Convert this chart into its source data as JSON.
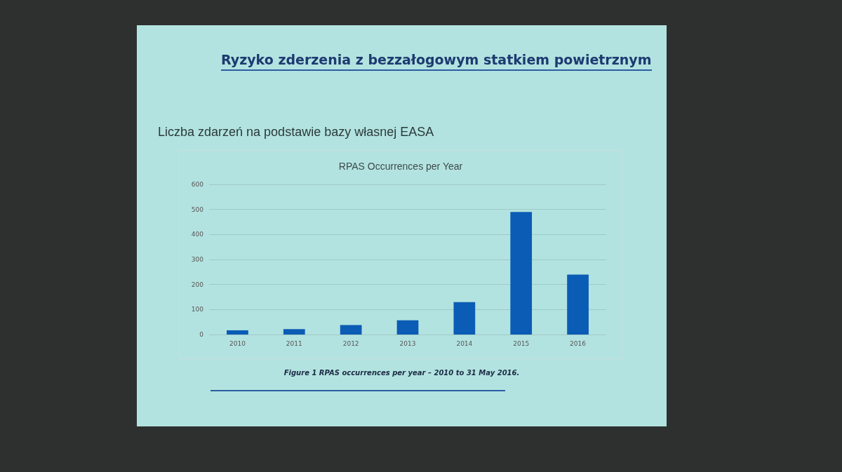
{
  "chart_data": {
    "type": "bar",
    "title": "RPAS Occurrences per Year",
    "annotations": [
      "Ryzyko zderzenia z bezzałogowym statkiem powietrznym",
      "Liczba zdarzeń na podstawie bazy własnej EASA",
      "Figure 1 RPAS occurrences per year – 2010 to 31 May 2016."
    ],
    "categories": [
      "2010",
      "2011",
      "2012",
      "2013",
      "2014",
      "2015",
      "2016"
    ],
    "values": [
      17,
      22,
      38,
      57,
      130,
      490,
      240
    ],
    "color": "#0b5cb5",
    "ylim": [
      0,
      600
    ],
    "yticks": [
      0,
      100,
      200,
      300,
      400,
      500,
      600
    ],
    "grid": "y"
  }
}
